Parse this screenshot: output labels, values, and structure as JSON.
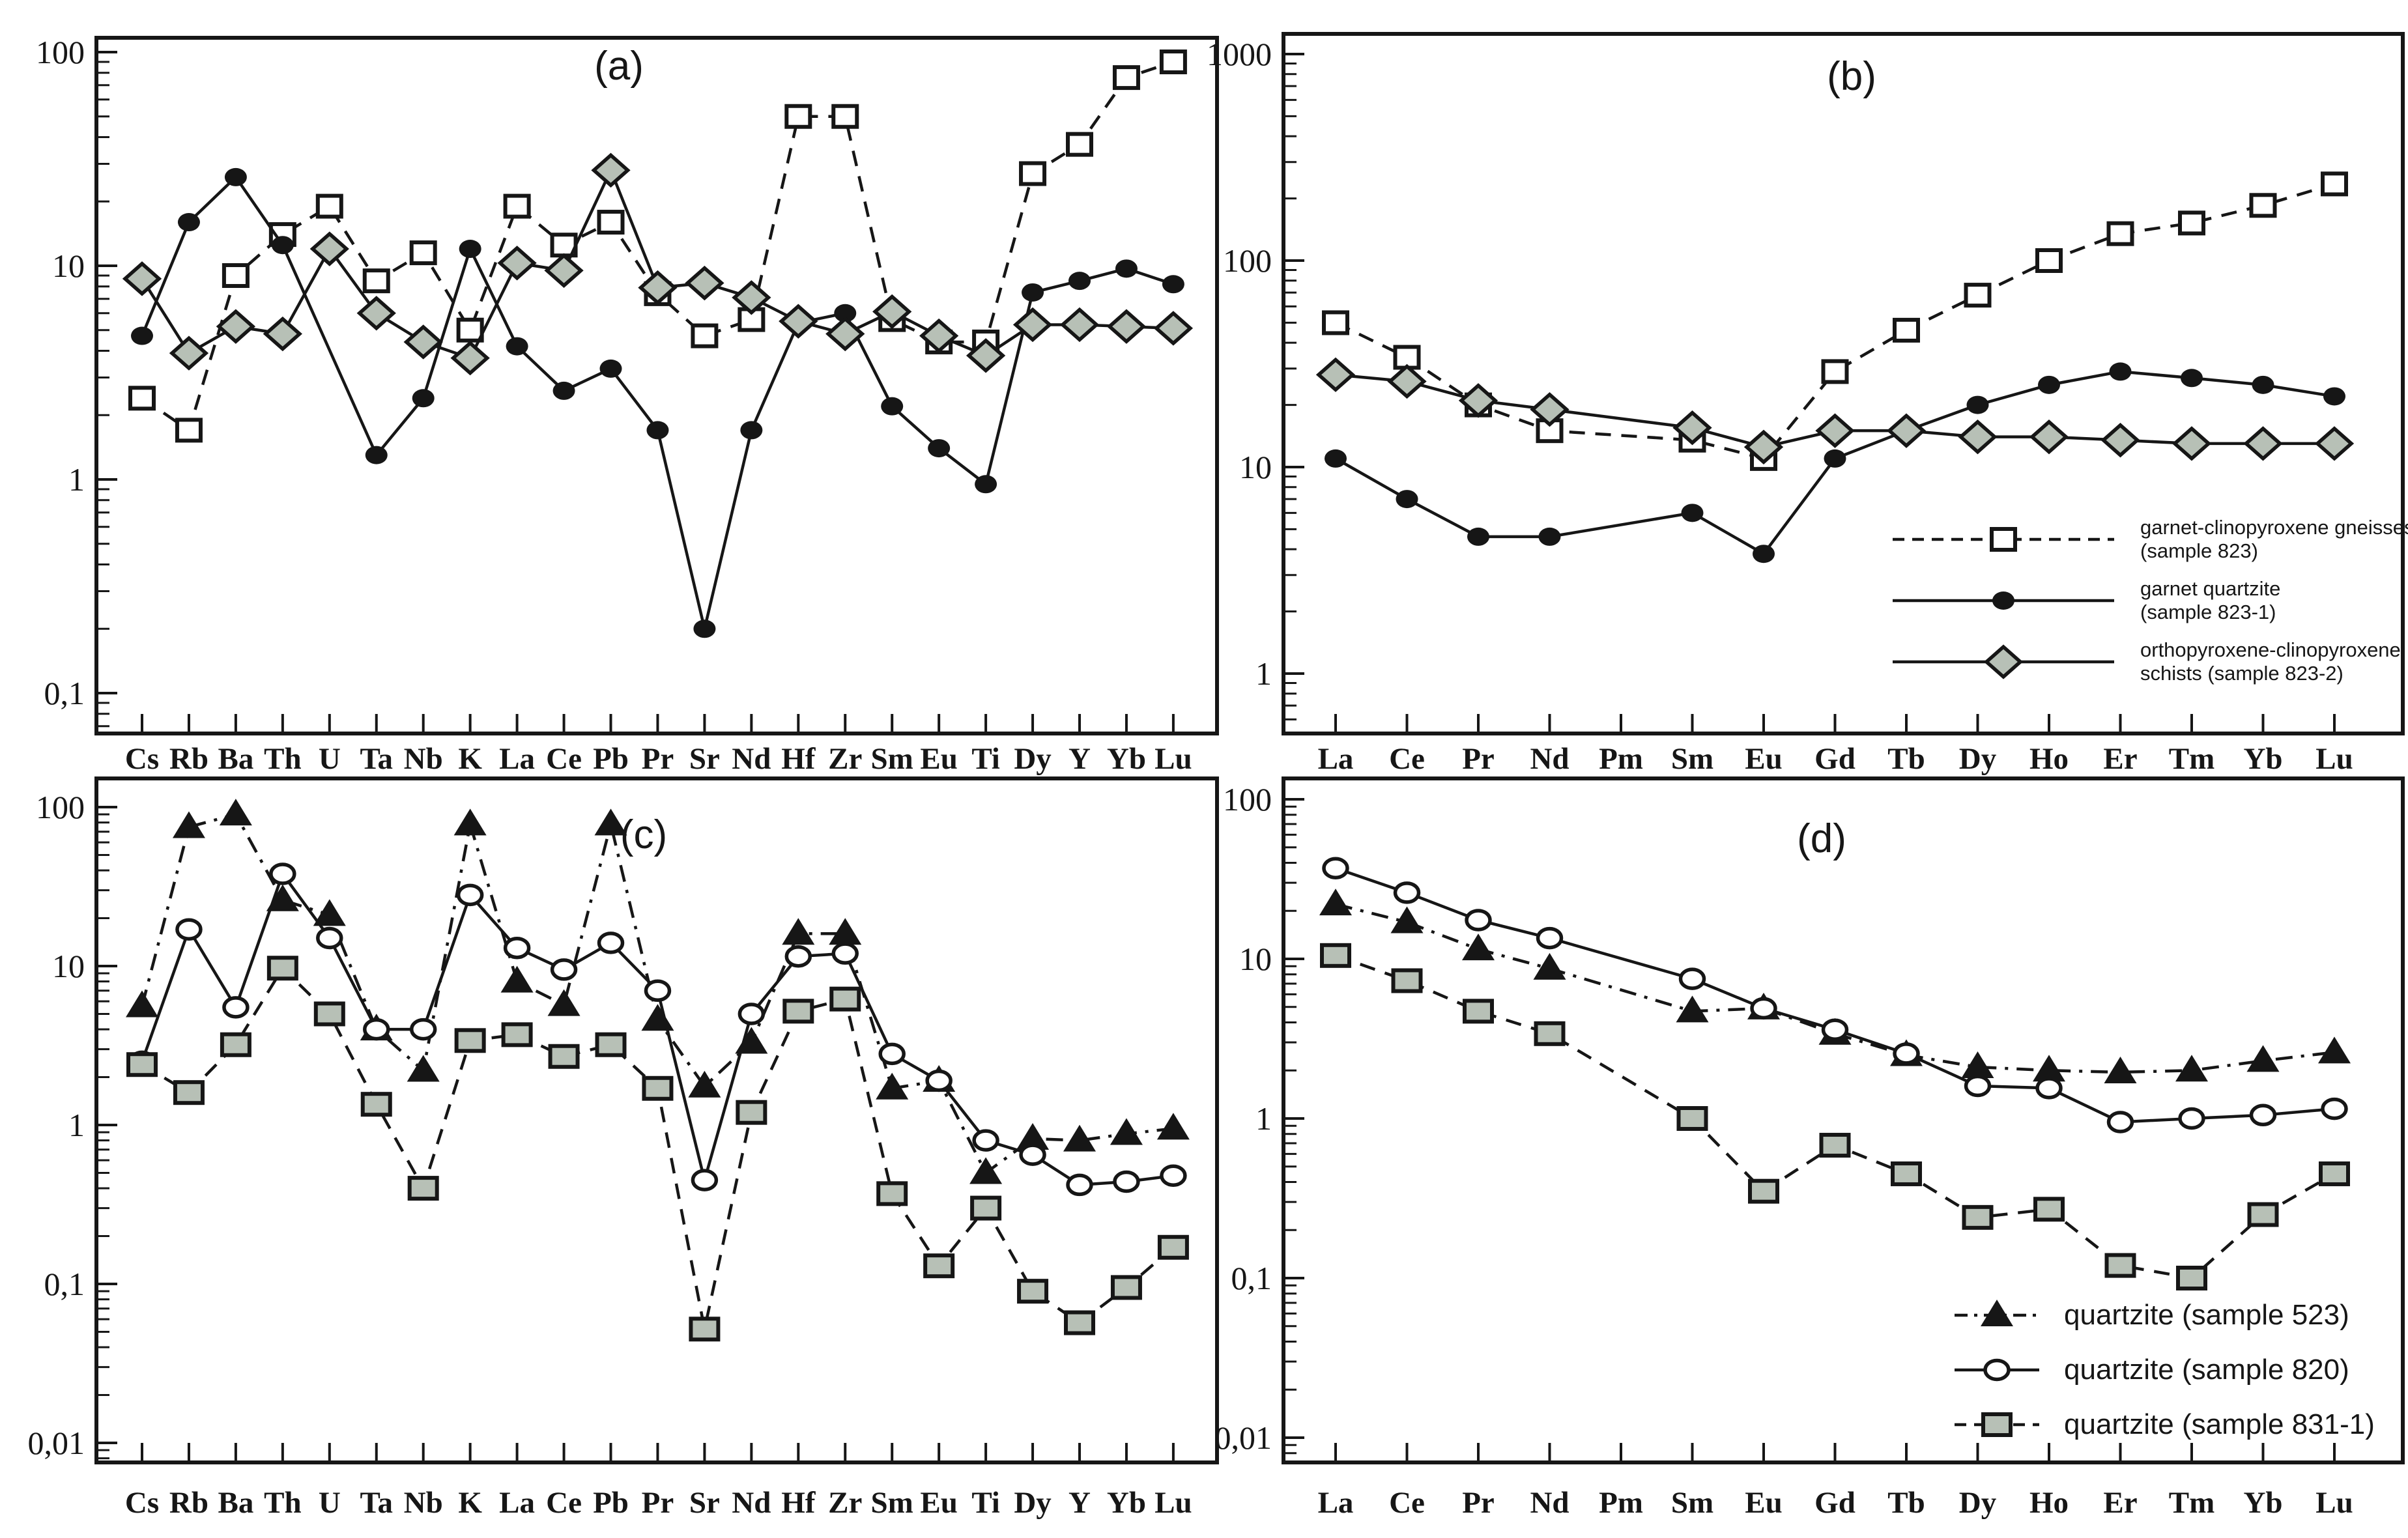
{
  "colors": {
    "ink": "#161616",
    "marker_gray": "#b7c0b6",
    "background": "#ffffff"
  },
  "chart_data": [
    {
      "id": "a",
      "panel_label": "(a)",
      "type": "line",
      "scale": "log",
      "ylabel": "",
      "yticks": [
        {
          "v": 100,
          "label": "100"
        },
        {
          "v": 10,
          "label": "10"
        },
        {
          "v": 1,
          "label": "1"
        },
        {
          "v": 0.1,
          "label": "0,1"
        }
      ],
      "categories": [
        "Cs",
        "Rb",
        "Ba",
        "Th",
        "U",
        "Ta",
        "Nb",
        "K",
        "La",
        "Ce",
        "Pb",
        "Pr",
        "Sr",
        "Nd",
        "Hf",
        "Zr",
        "Sm",
        "Eu",
        "Ti",
        "Dy",
        "Y",
        "Yb",
        "Lu"
      ],
      "series": [
        {
          "id": "823",
          "name": "garnet-clinopyroxene gneisses (sample 823)",
          "marker": "square-open",
          "line": "dashed",
          "values": [
            2.4,
            1.7,
            9,
            14,
            19,
            8.5,
            11.5,
            5,
            19,
            12.5,
            16,
            7.4,
            4.7,
            5.6,
            50,
            50,
            5.6,
            4.4,
            4.4,
            27,
            37,
            76,
            90
          ]
        },
        {
          "id": "823-1",
          "name": "garnet quartzite (sample 823-1)",
          "marker": "circle-filled",
          "line": "solid",
          "values": [
            4.7,
            16,
            26,
            12.5,
            null,
            1.3,
            2.4,
            12,
            4.2,
            2.6,
            3.3,
            1.7,
            0.2,
            1.7,
            5.4,
            6,
            2.2,
            1.4,
            0.95,
            7.5,
            8.5,
            9.7,
            8.2
          ]
        },
        {
          "id": "823-2",
          "name": "orthopyroxene-clinopyroxene schists (sample 823-2)",
          "marker": "diamond-gray",
          "line": "solid",
          "values": [
            8.7,
            3.9,
            5.2,
            4.8,
            12,
            6,
            4.4,
            3.7,
            10.3,
            9.5,
            28,
            7.9,
            8.3,
            7.1,
            5.5,
            4.8,
            6.1,
            4.7,
            3.8,
            5.3,
            5.3,
            5.2,
            5.1
          ]
        }
      ]
    },
    {
      "id": "b",
      "panel_label": "(b)",
      "type": "line",
      "scale": "log",
      "yticks": [
        {
          "v": 1000,
          "label": "1000"
        },
        {
          "v": 100,
          "label": "100"
        },
        {
          "v": 10,
          "label": "10"
        },
        {
          "v": 1,
          "label": "1"
        }
      ],
      "categories": [
        "La",
        "Ce",
        "Pr",
        "Nd",
        "Pm",
        "Sm",
        "Eu",
        "Gd",
        "Tb",
        "Dy",
        "Ho",
        "Er",
        "Tm",
        "Yb",
        "Lu"
      ],
      "series": [
        {
          "id": "823",
          "name": "garnet-clinopyroxene gneisses (sample 823)",
          "marker": "square-open",
          "line": "dashed",
          "values": [
            50,
            34,
            20,
            15,
            null,
            13.5,
            11,
            29,
            46,
            68,
            100,
            135,
            152,
            185,
            235
          ]
        },
        {
          "id": "823-1",
          "name": "garnet quartzite (sample 823-1)",
          "marker": "circle-filled",
          "line": "solid",
          "values": [
            11,
            7,
            4.6,
            4.6,
            null,
            6,
            3.8,
            11,
            15,
            20,
            25,
            29,
            27,
            25,
            22
          ]
        },
        {
          "id": "823-2",
          "name": "orthopyroxene-clinopyroxene schists (sample 823-2)",
          "marker": "diamond-gray",
          "line": "solid",
          "values": [
            28,
            26,
            21,
            19,
            null,
            15.5,
            12.5,
            15,
            15,
            14,
            14,
            13.5,
            13,
            13,
            13
          ]
        }
      ],
      "legend": {
        "items": [
          {
            "series": 0,
            "lines": [
              "garnet-clinopyroxene gneisses",
              "(sample 823)"
            ]
          },
          {
            "series": 1,
            "lines": [
              "garnet quartzite",
              "(sample 823-1)"
            ]
          },
          {
            "series": 2,
            "lines": [
              "orthopyroxene-clinopyroxene",
              "schists (sample 823-2)"
            ]
          }
        ]
      }
    },
    {
      "id": "c",
      "panel_label": "(c)",
      "type": "line",
      "scale": "log",
      "yticks": [
        {
          "v": 100,
          "label": "100"
        },
        {
          "v": 10,
          "label": "10"
        },
        {
          "v": 1,
          "label": "1"
        },
        {
          "v": 0.1,
          "label": "0,1"
        },
        {
          "v": 0.01,
          "label": "0,01"
        }
      ],
      "categories": [
        "Cs",
        "Rb",
        "Ba",
        "Th",
        "U",
        "Ta",
        "Nb",
        "K",
        "La",
        "Ce",
        "Pb",
        "Pr",
        "Sr",
        "Nd",
        "Hf",
        "Zr",
        "Sm",
        "Eu",
        "Ti",
        "Dy",
        "Y",
        "Yb",
        "Lu"
      ],
      "series": [
        {
          "id": "523",
          "name": "quartzite (sample 523)",
          "marker": "triangle-filled",
          "line": "dashdot",
          "values": [
            5.6,
            75,
            90,
            26,
            21,
            4,
            2.2,
            78,
            8,
            5.7,
            78,
            4.6,
            1.75,
            3.3,
            16,
            16,
            1.7,
            1.9,
            0.5,
            0.82,
            0.8,
            0.88,
            0.95
          ]
        },
        {
          "id": "820",
          "name": "quartzite (sample 820)",
          "marker": "circle-open",
          "line": "solid",
          "values": [
            2.5,
            17,
            5.5,
            38,
            15,
            4,
            4,
            28,
            13,
            9.5,
            14,
            7,
            0.45,
            5,
            11.5,
            12,
            2.8,
            1.9,
            0.8,
            0.65,
            0.42,
            0.44,
            0.48
          ]
        },
        {
          "id": "831-1",
          "name": "quartzite (sample 831-1)",
          "marker": "square-gray",
          "line": "dashed",
          "values": [
            2.4,
            1.6,
            3.2,
            9.7,
            5,
            1.35,
            0.4,
            3.4,
            3.7,
            2.7,
            3.2,
            1.7,
            0.052,
            1.2,
            5.2,
            6.2,
            0.37,
            0.13,
            0.3,
            0.09,
            0.057,
            0.095,
            0.17
          ]
        }
      ]
    },
    {
      "id": "d",
      "panel_label": "(d)",
      "type": "line",
      "scale": "log",
      "yticks": [
        {
          "v": 100,
          "label": "100"
        },
        {
          "v": 10,
          "label": "10"
        },
        {
          "v": 1,
          "label": "1"
        },
        {
          "v": 0.1,
          "label": "0,1"
        },
        {
          "v": 0.01,
          "label": "0,01"
        }
      ],
      "categories": [
        "La",
        "Ce",
        "Pr",
        "Nd",
        "Pm",
        "Sm",
        "Eu",
        "Gd",
        "Tb",
        "Dy",
        "Ho",
        "Er",
        "Tm",
        "Yb",
        "Lu"
      ],
      "series": [
        {
          "id": "523",
          "name": "quartzite (sample 523)",
          "marker": "triangle-filled",
          "line": "dashdot",
          "values": [
            22,
            17,
            11.5,
            8.7,
            null,
            4.7,
            4.9,
            3.4,
            2.5,
            2.1,
            2.0,
            1.95,
            2.0,
            2.3,
            2.6
          ]
        },
        {
          "id": "820",
          "name": "quartzite (sample 820)",
          "marker": "circle-open",
          "line": "solid",
          "values": [
            37,
            26,
            17.5,
            13.5,
            null,
            7.5,
            4.9,
            3.6,
            2.55,
            1.6,
            1.55,
            0.95,
            1.0,
            1.05,
            1.15
          ]
        },
        {
          "id": "831-1",
          "name": "quartzite (sample 831-1)",
          "marker": "square-gray",
          "line": "dashed",
          "values": [
            10.5,
            7.3,
            4.7,
            3.4,
            null,
            1.0,
            0.35,
            0.68,
            0.45,
            0.24,
            0.27,
            0.12,
            0.1,
            0.25,
            0.45
          ]
        }
      ],
      "legend": {
        "items": [
          {
            "series": 0,
            "lines": [
              "quartzite (sample 523)"
            ]
          },
          {
            "series": 1,
            "lines": [
              "quartzite (sample 820)"
            ]
          },
          {
            "series": 2,
            "lines": [
              "quartzite (sample 831-1)"
            ]
          }
        ]
      }
    }
  ]
}
